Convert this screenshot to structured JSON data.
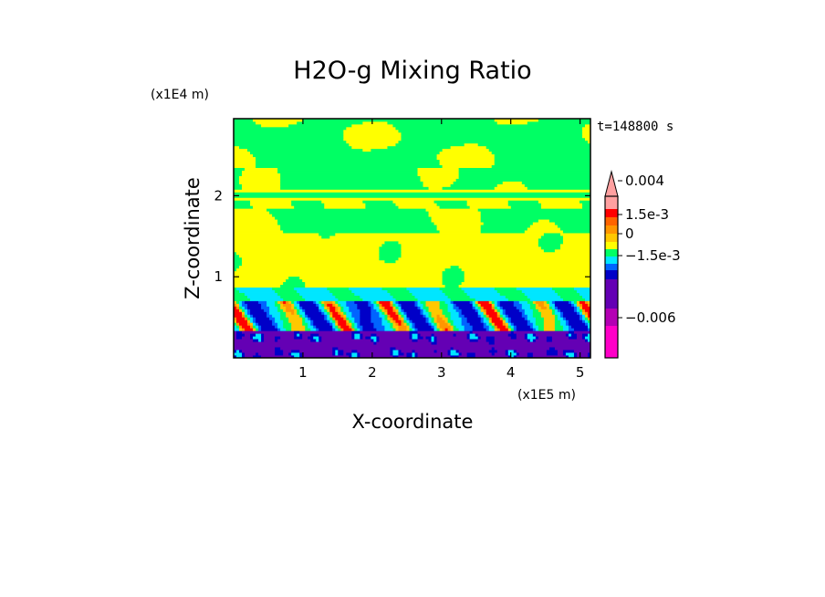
{
  "chart_data": {
    "type": "heatmap",
    "title": "H2O-g Mixing Ratio",
    "xlabel": "X-coordinate",
    "ylabel": "Z-coordinate",
    "x_scale_label": "(x1E5 m)",
    "y_scale_label": "(x1E4 m)",
    "time_label": "t=148800 s",
    "xlim": [
      0,
      5.15
    ],
    "ylim": [
      0,
      2.95
    ],
    "x_ticks": [
      1,
      2,
      3,
      4,
      5
    ],
    "y_ticks": [
      1,
      2
    ],
    "x_tick_labels": [
      "1",
      "2",
      "3",
      "4",
      "5"
    ],
    "y_tick_labels": [
      "1",
      "2"
    ],
    "colorbar": {
      "levels": [
        {
          "color": "#ff00c8"
        },
        {
          "color": "#b400b4"
        },
        {
          "color": "#6400b4"
        },
        {
          "color": "#0000c8"
        },
        {
          "color": "#0064ff"
        },
        {
          "color": "#00e6ff"
        },
        {
          "color": "#00ff64"
        },
        {
          "color": "#ffff00"
        },
        {
          "color": "#ffc800"
        },
        {
          "color": "#ff9600"
        },
        {
          "color": "#ff6400"
        },
        {
          "color": "#ff0000"
        },
        {
          "color": "#ffa0a0"
        }
      ],
      "labels": [
        "0.004",
        "1.5e-3",
        "0",
        "−1.5e-3",
        "−0.006"
      ],
      "label_values": [
        0.004,
        0.0015,
        0,
        -0.0015,
        -0.006
      ],
      "extend": "max"
    }
  }
}
